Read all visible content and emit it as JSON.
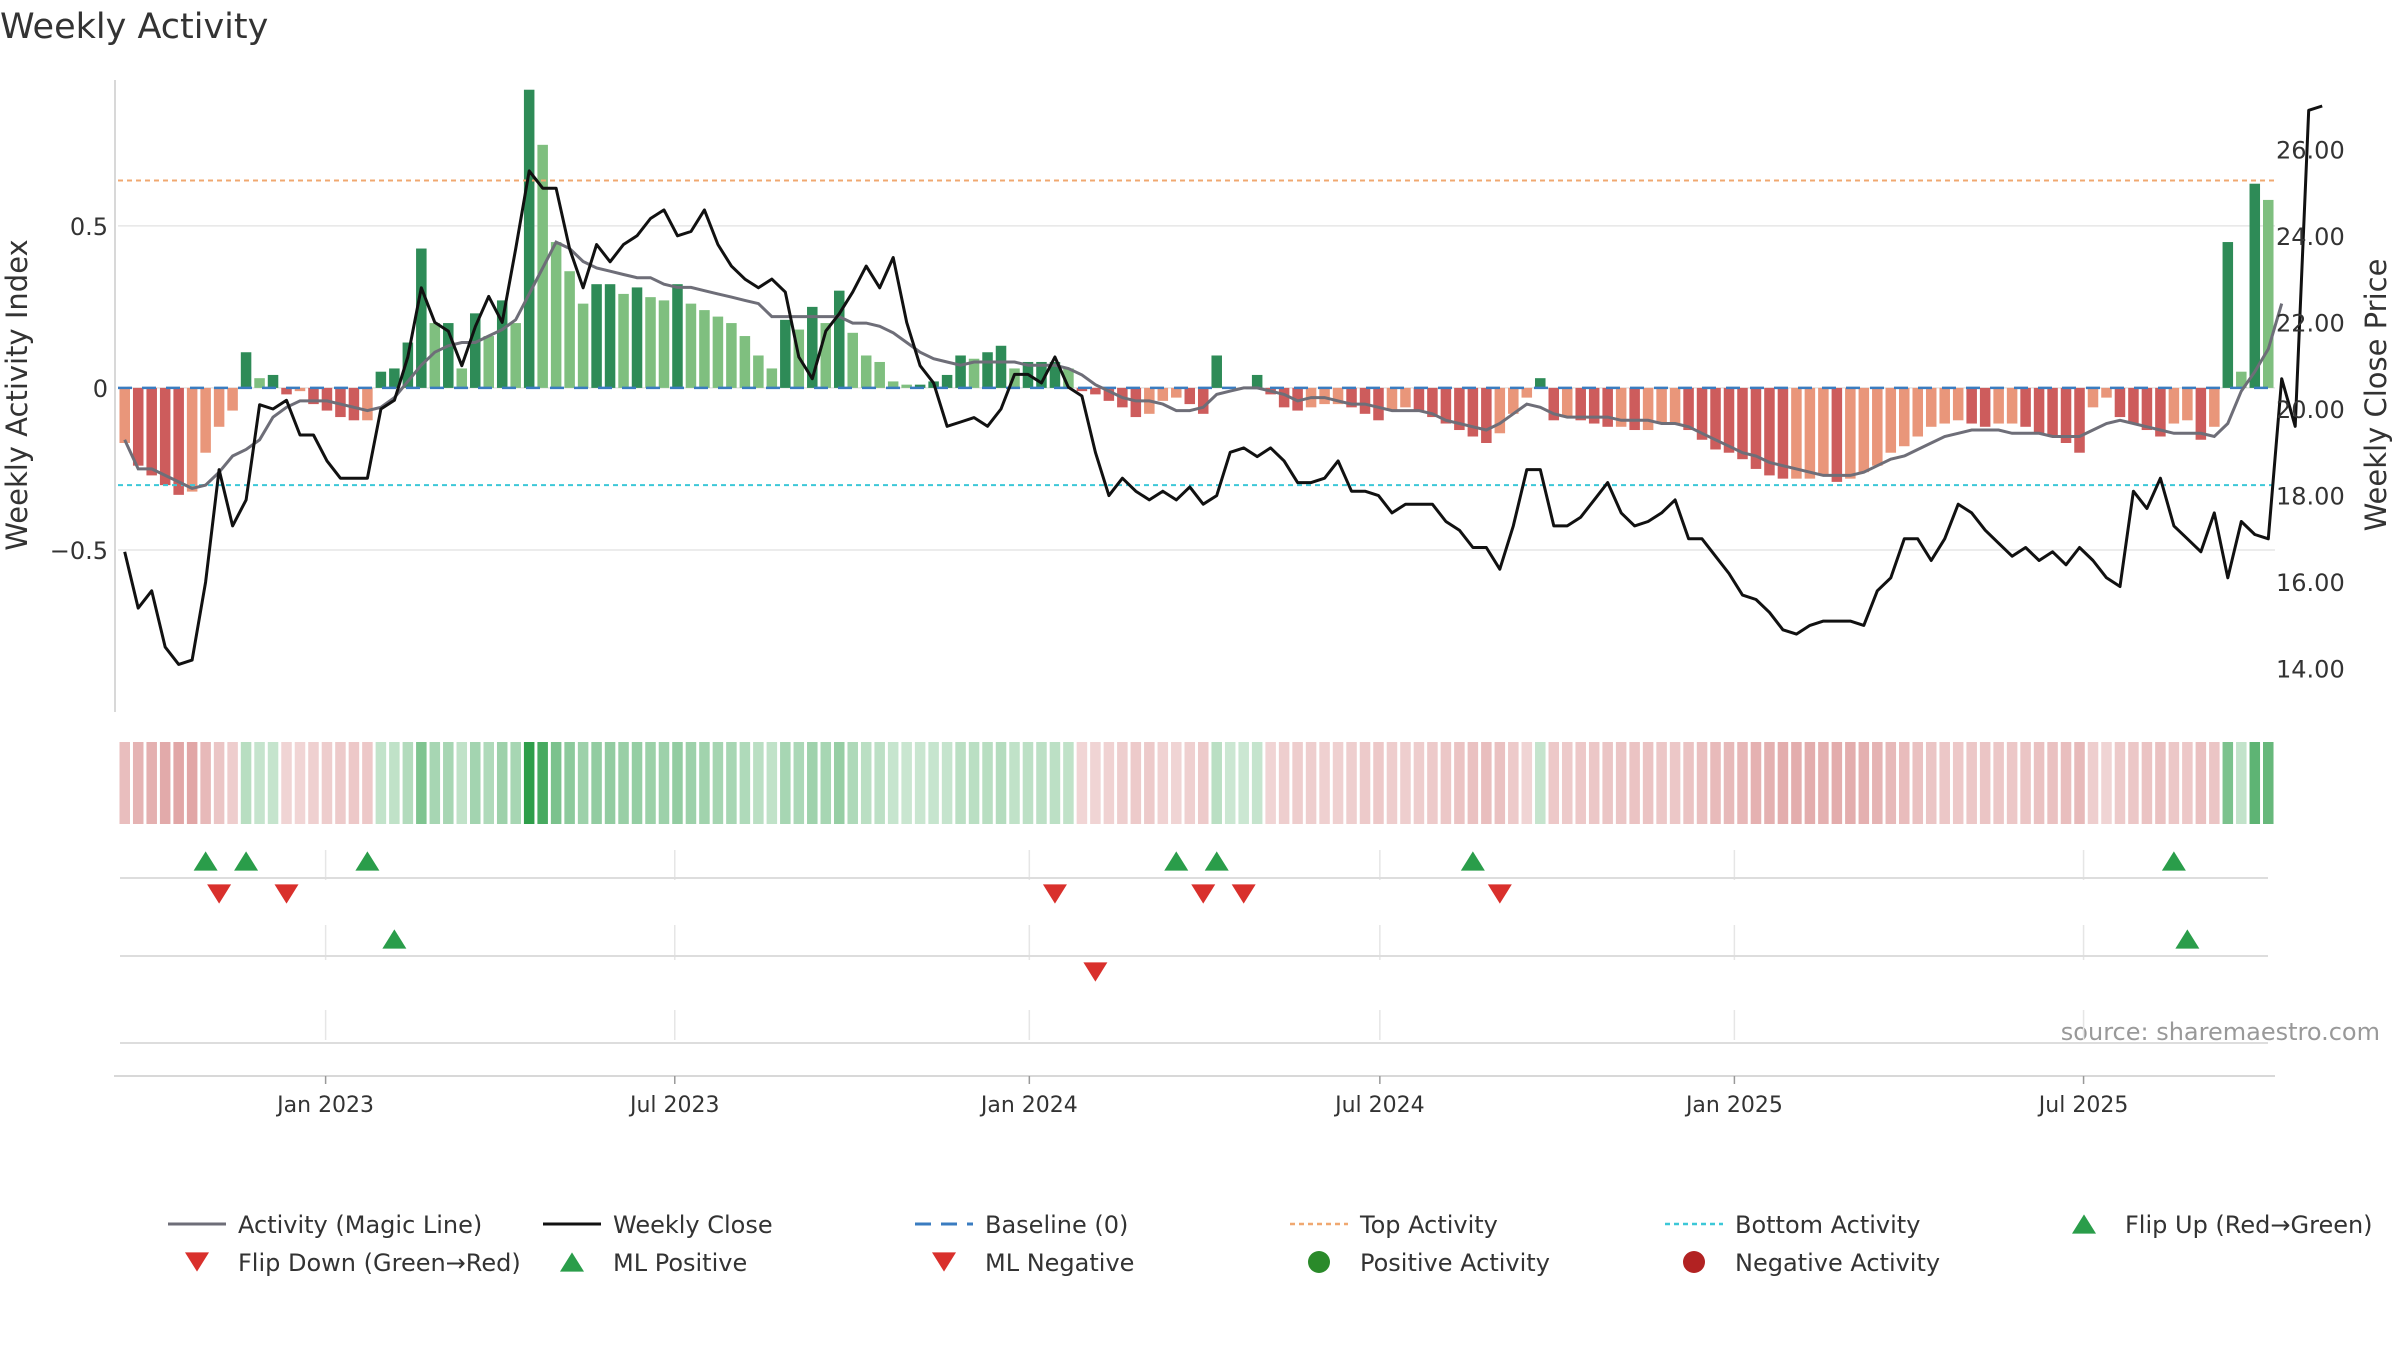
{
  "chart_data": {
    "type": "bar",
    "title": "Weekly Activity",
    "ylabel_left": "Weekly Activity Index",
    "ylabel_right": "Weekly Close Price",
    "source": "source: sharemaestro.com",
    "ylim_left": [
      -1.0,
      0.95
    ],
    "ylim_right": [
      13.0,
      27.6
    ],
    "left_ticks": [
      {
        "v": 0.5,
        "label": "0.5"
      },
      {
        "v": 0,
        "label": "0"
      },
      {
        "v": -0.5,
        "label": "−0.5"
      }
    ],
    "right_ticks": [
      {
        "v": 26,
        "label": "26.00"
      },
      {
        "v": 24,
        "label": "24.00"
      },
      {
        "v": 22,
        "label": "22.00"
      },
      {
        "v": 20,
        "label": "20.00"
      },
      {
        "v": 18,
        "label": "18.00"
      },
      {
        "v": 16,
        "label": "16.00"
      },
      {
        "v": 14,
        "label": "14.00"
      }
    ],
    "x_ticks": [
      {
        "week": 14.9,
        "label": "Jan 2023"
      },
      {
        "week": 40.8,
        "label": "Jul 2023"
      },
      {
        "week": 67.1,
        "label": "Jan 2024"
      },
      {
        "week": 93.1,
        "label": "Jul 2024"
      },
      {
        "week": 119.4,
        "label": "Jan 2025"
      },
      {
        "week": 145.3,
        "label": "Jul 2025"
      }
    ],
    "top_activity": 0.64,
    "bottom_activity": -0.3,
    "baseline": 0,
    "activity": [
      -0.17,
      -0.24,
      -0.27,
      -0.3,
      -0.33,
      -0.32,
      -0.2,
      -0.12,
      -0.07,
      0.11,
      0.03,
      0.04,
      -0.02,
      -0.01,
      -0.05,
      -0.07,
      -0.09,
      -0.1,
      -0.1,
      0.05,
      0.06,
      0.14,
      0.43,
      0.2,
      0.2,
      0.06,
      0.23,
      0.16,
      0.27,
      0.2,
      0.92,
      0.75,
      0.45,
      0.36,
      0.26,
      0.32,
      0.32,
      0.29,
      0.31,
      0.28,
      0.27,
      0.32,
      0.26,
      0.24,
      0.22,
      0.2,
      0.16,
      0.1,
      0.06,
      0.21,
      0.18,
      0.25,
      0.2,
      0.3,
      0.17,
      0.1,
      0.08,
      0.02,
      0.01,
      0.01,
      0.02,
      0.04,
      0.1,
      0.09,
      0.11,
      0.13,
      0.06,
      0.08,
      0.08,
      0.08,
      0.06,
      -0.01,
      -0.02,
      -0.04,
      -0.06,
      -0.09,
      -0.08,
      -0.04,
      -0.03,
      -0.05,
      -0.08,
      0.1,
      0.0,
      0.0,
      0.04,
      -0.02,
      -0.06,
      -0.07,
      -0.06,
      -0.05,
      -0.05,
      -0.06,
      -0.08,
      -0.1,
      -0.07,
      -0.06,
      -0.07,
      -0.09,
      -0.11,
      -0.13,
      -0.15,
      -0.17,
      -0.14,
      -0.08,
      -0.03,
      0.03,
      -0.1,
      -0.09,
      -0.1,
      -0.11,
      -0.12,
      -0.12,
      -0.13,
      -0.13,
      -0.11,
      -0.11,
      -0.13,
      -0.16,
      -0.19,
      -0.2,
      -0.22,
      -0.25,
      -0.27,
      -0.28,
      -0.28,
      -0.28,
      -0.27,
      -0.29,
      -0.28,
      -0.26,
      -0.24,
      -0.2,
      -0.18,
      -0.15,
      -0.12,
      -0.11,
      -0.1,
      -0.11,
      -0.12,
      -0.11,
      -0.11,
      -0.12,
      -0.14,
      -0.15,
      -0.17,
      -0.2,
      -0.06,
      -0.03,
      -0.09,
      -0.11,
      -0.13,
      -0.15,
      -0.11,
      -0.1,
      -0.16,
      -0.12,
      0.45,
      0.05,
      0.63,
      0.58
    ],
    "magic_line": [
      -0.16,
      -0.25,
      -0.25,
      -0.27,
      -0.29,
      -0.31,
      -0.3,
      -0.26,
      -0.21,
      -0.19,
      -0.16,
      -0.09,
      -0.06,
      -0.04,
      -0.04,
      -0.04,
      -0.05,
      -0.06,
      -0.07,
      -0.06,
      -0.03,
      0.02,
      0.07,
      0.11,
      0.13,
      0.14,
      0.14,
      0.16,
      0.18,
      0.21,
      0.29,
      0.37,
      0.45,
      0.43,
      0.39,
      0.37,
      0.36,
      0.35,
      0.34,
      0.34,
      0.32,
      0.31,
      0.31,
      0.3,
      0.29,
      0.28,
      0.27,
      0.26,
      0.22,
      0.22,
      0.22,
      0.22,
      0.22,
      0.22,
      0.2,
      0.2,
      0.19,
      0.17,
      0.14,
      0.11,
      0.09,
      0.08,
      0.07,
      0.08,
      0.08,
      0.08,
      0.08,
      0.07,
      0.07,
      0.07,
      0.06,
      0.04,
      0.01,
      -0.01,
      -0.03,
      -0.04,
      -0.04,
      -0.05,
      -0.07,
      -0.07,
      -0.06,
      -0.02,
      -0.01,
      0.0,
      0.0,
      -0.01,
      -0.02,
      -0.04,
      -0.03,
      -0.03,
      -0.04,
      -0.05,
      -0.05,
      -0.06,
      -0.07,
      -0.07,
      -0.07,
      -0.08,
      -0.1,
      -0.11,
      -0.12,
      -0.13,
      -0.11,
      -0.08,
      -0.05,
      -0.06,
      -0.08,
      -0.09,
      -0.09,
      -0.09,
      -0.09,
      -0.1,
      -0.1,
      -0.1,
      -0.11,
      -0.11,
      -0.12,
      -0.14,
      -0.16,
      -0.18,
      -0.2,
      -0.21,
      -0.23,
      -0.24,
      -0.25,
      -0.26,
      -0.27,
      -0.27,
      -0.27,
      -0.26,
      -0.24,
      -0.22,
      -0.21,
      -0.19,
      -0.17,
      -0.15,
      -0.14,
      -0.13,
      -0.13,
      -0.13,
      -0.14,
      -0.14,
      -0.14,
      -0.15,
      -0.15,
      -0.15,
      -0.13,
      -0.11,
      -0.1,
      -0.11,
      -0.12,
      -0.13,
      -0.14,
      -0.14,
      -0.14,
      -0.15,
      -0.11,
      -0.01,
      0.05,
      0.12,
      0.26
    ],
    "weekly_close": [
      16.7,
      15.4,
      15.8,
      14.5,
      14.1,
      14.2,
      16.0,
      18.6,
      17.3,
      17.9,
      20.1,
      20.0,
      20.2,
      19.4,
      19.4,
      18.8,
      18.4,
      18.4,
      18.4,
      20.0,
      20.2,
      21.2,
      22.8,
      22.0,
      21.8,
      21.0,
      21.9,
      22.6,
      22.0,
      23.7,
      25.5,
      25.1,
      25.1,
      23.7,
      22.8,
      23.8,
      23.4,
      23.8,
      24.0,
      24.4,
      24.6,
      24.0,
      24.1,
      24.6,
      23.8,
      23.3,
      23.0,
      22.8,
      23.0,
      22.7,
      21.2,
      20.7,
      21.8,
      22.2,
      22.7,
      23.3,
      22.8,
      23.5,
      22.0,
      21.0,
      20.6,
      19.6,
      19.7,
      19.8,
      19.6,
      20.0,
      20.8,
      20.8,
      20.6,
      21.2,
      20.5,
      20.3,
      19.0,
      18.0,
      18.4,
      18.1,
      17.9,
      18.1,
      17.9,
      18.2,
      17.8,
      18.0,
      19.0,
      19.1,
      18.9,
      19.1,
      18.8,
      18.3,
      18.3,
      18.4,
      18.8,
      18.1,
      18.1,
      18.0,
      17.6,
      17.8,
      17.8,
      17.8,
      17.4,
      17.2,
      16.8,
      16.8,
      16.3,
      17.3,
      18.6,
      18.6,
      17.3,
      17.3,
      17.5,
      17.9,
      18.3,
      17.6,
      17.3,
      17.4,
      17.6,
      17.9,
      17.0,
      17.0,
      16.6,
      16.2,
      15.7,
      15.6,
      15.3,
      14.9,
      14.8,
      15.0,
      15.1,
      15.1,
      15.1,
      15.0,
      15.8,
      16.1,
      17.0,
      17.0,
      16.5,
      17.0,
      17.8,
      17.6,
      17.2,
      16.9,
      16.6,
      16.8,
      16.5,
      16.7,
      16.4,
      16.8,
      16.5,
      16.1,
      15.9,
      18.1,
      17.7,
      18.4,
      17.3,
      17.0,
      16.7,
      17.6,
      16.1,
      17.4,
      17.1,
      17.0,
      20.7,
      19.6,
      26.9,
      27.0
    ],
    "flip_up": [
      6,
      9,
      18,
      78,
      81,
      100,
      152
    ],
    "flip_down": [
      7,
      12,
      69,
      80,
      83,
      102
    ],
    "ml_positive": [
      20,
      153
    ],
    "ml_negative": [
      72
    ],
    "legend": [
      {
        "label": "Activity (Magic Line)",
        "kind": "line",
        "color": "#6e6e78"
      },
      {
        "label": "Weekly Close",
        "kind": "line",
        "color": "#111111"
      },
      {
        "label": "Baseline (0)",
        "kind": "dash",
        "color": "#3a7cc0"
      },
      {
        "label": "Top Activity",
        "kind": "dot",
        "color": "#f0a870"
      },
      {
        "label": "Bottom Activity",
        "kind": "dot",
        "color": "#3cc8d8"
      },
      {
        "label": "Flip Up (Red→Green)",
        "kind": "tri-up",
        "color": "#2a9d4a"
      },
      {
        "label": "Flip Down (Green→Red)",
        "kind": "tri-down",
        "color": "#d9302c"
      },
      {
        "label": "ML Positive",
        "kind": "tri-up",
        "color": "#2a9d4a"
      },
      {
        "label": "ML Negative",
        "kind": "tri-down",
        "color": "#d9302c"
      },
      {
        "label": "Positive Activity",
        "kind": "circle",
        "color": "#2a8a2a"
      },
      {
        "label": "Negative Activity",
        "kind": "circle",
        "color": "#b22222"
      }
    ],
    "colors": {
      "pos_dark": "#2e8b57",
      "pos_light": "#7fbf7f",
      "neg_dark": "#cd5c5c",
      "neg_light": "#e9967a",
      "close": "#111111",
      "magic": "#6e6e78",
      "top": "#f0a870",
      "bottom": "#3cc8d8",
      "baseline": "#3a7cc0",
      "tri_up": "#2a9d4a",
      "tri_down": "#d9302c",
      "grid": "#e6e6e6",
      "axis": "#cccccc"
    }
  }
}
